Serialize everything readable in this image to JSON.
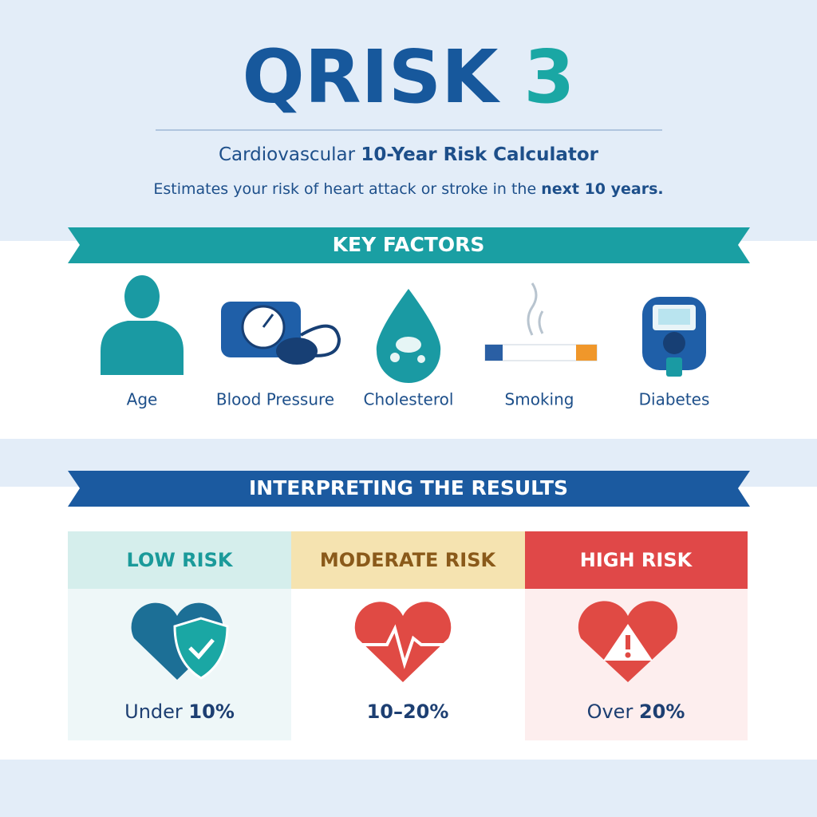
{
  "header": {
    "title_main": "QRISK",
    "title_accent": "3",
    "subtitle_plain": "Cardiovascular",
    "subtitle_bold": "10-Year Risk Calculator",
    "description_plain": "Estimates your risk of heart attack or stroke in the",
    "description_bold": "next 10 years."
  },
  "key_factors": {
    "heading": "KEY FACTORS",
    "items": [
      "Age",
      "Blood Pressure",
      "Cholesterol",
      "Smoking",
      "Diabetes"
    ]
  },
  "results": {
    "heading": "INTERPRETING THE RESULTS",
    "levels": [
      {
        "label": "LOW RISK",
        "prefix": "Under",
        "value": "10%"
      },
      {
        "label": "MODERATE RISK",
        "prefix": "",
        "value": "10–20%"
      },
      {
        "label": "HIGH RISK",
        "prefix": "Over",
        "value": "20%"
      }
    ]
  }
}
